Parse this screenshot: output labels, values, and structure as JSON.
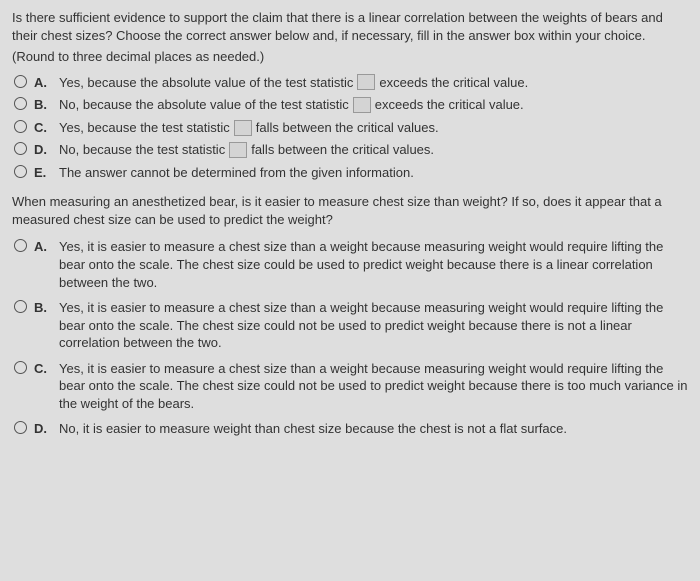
{
  "q1": {
    "prompt": "Is there sufficient evidence to support the claim that there is a linear correlation between the weights of bears and their chest sizes? Choose the correct answer below and, if necessary, fill in the answer box within your choice.",
    "instruction": "(Round to three decimal places as needed.)",
    "options": {
      "A": {
        "pre": "Yes, because the absolute value of the test statistic",
        "post": "exceeds the critical value."
      },
      "B": {
        "pre": "No, because the absolute value of the test statistic",
        "post": "exceeds the critical value."
      },
      "C": {
        "pre": "Yes, because the test statistic",
        "post": "falls between the critical values."
      },
      "D": {
        "pre": "No, because the test statistic",
        "post": "falls between the critical values."
      },
      "E": {
        "text": "The answer cannot be determined from the given information."
      }
    }
  },
  "q2": {
    "prompt": "When measuring an anesthetized bear, is it easier to measure chest size than weight? If so, does it appear that a measured chest size can be used to predict the weight?",
    "options": {
      "A": "Yes, it is easier to measure a chest size than a weight because measuring weight would require lifting the bear onto the scale. The chest size could be used to predict weight because there is a linear correlation between the two.",
      "B": "Yes, it is easier to measure a chest size than a weight because measuring weight would require lifting the bear onto the scale. The chest size could not be used to predict weight because there is not a linear correlation between the two.",
      "C": "Yes, it is easier to measure a chest size than a weight because measuring weight would require lifting the bear onto the scale. The chest size could not be used to predict weight because there is too much variance in the weight of the bears.",
      "D": "No, it is easier to measure weight than chest size because the chest is not a flat surface."
    }
  },
  "labels": {
    "A": "A.",
    "B": "B.",
    "C": "C.",
    "D": "D.",
    "E": "E."
  }
}
